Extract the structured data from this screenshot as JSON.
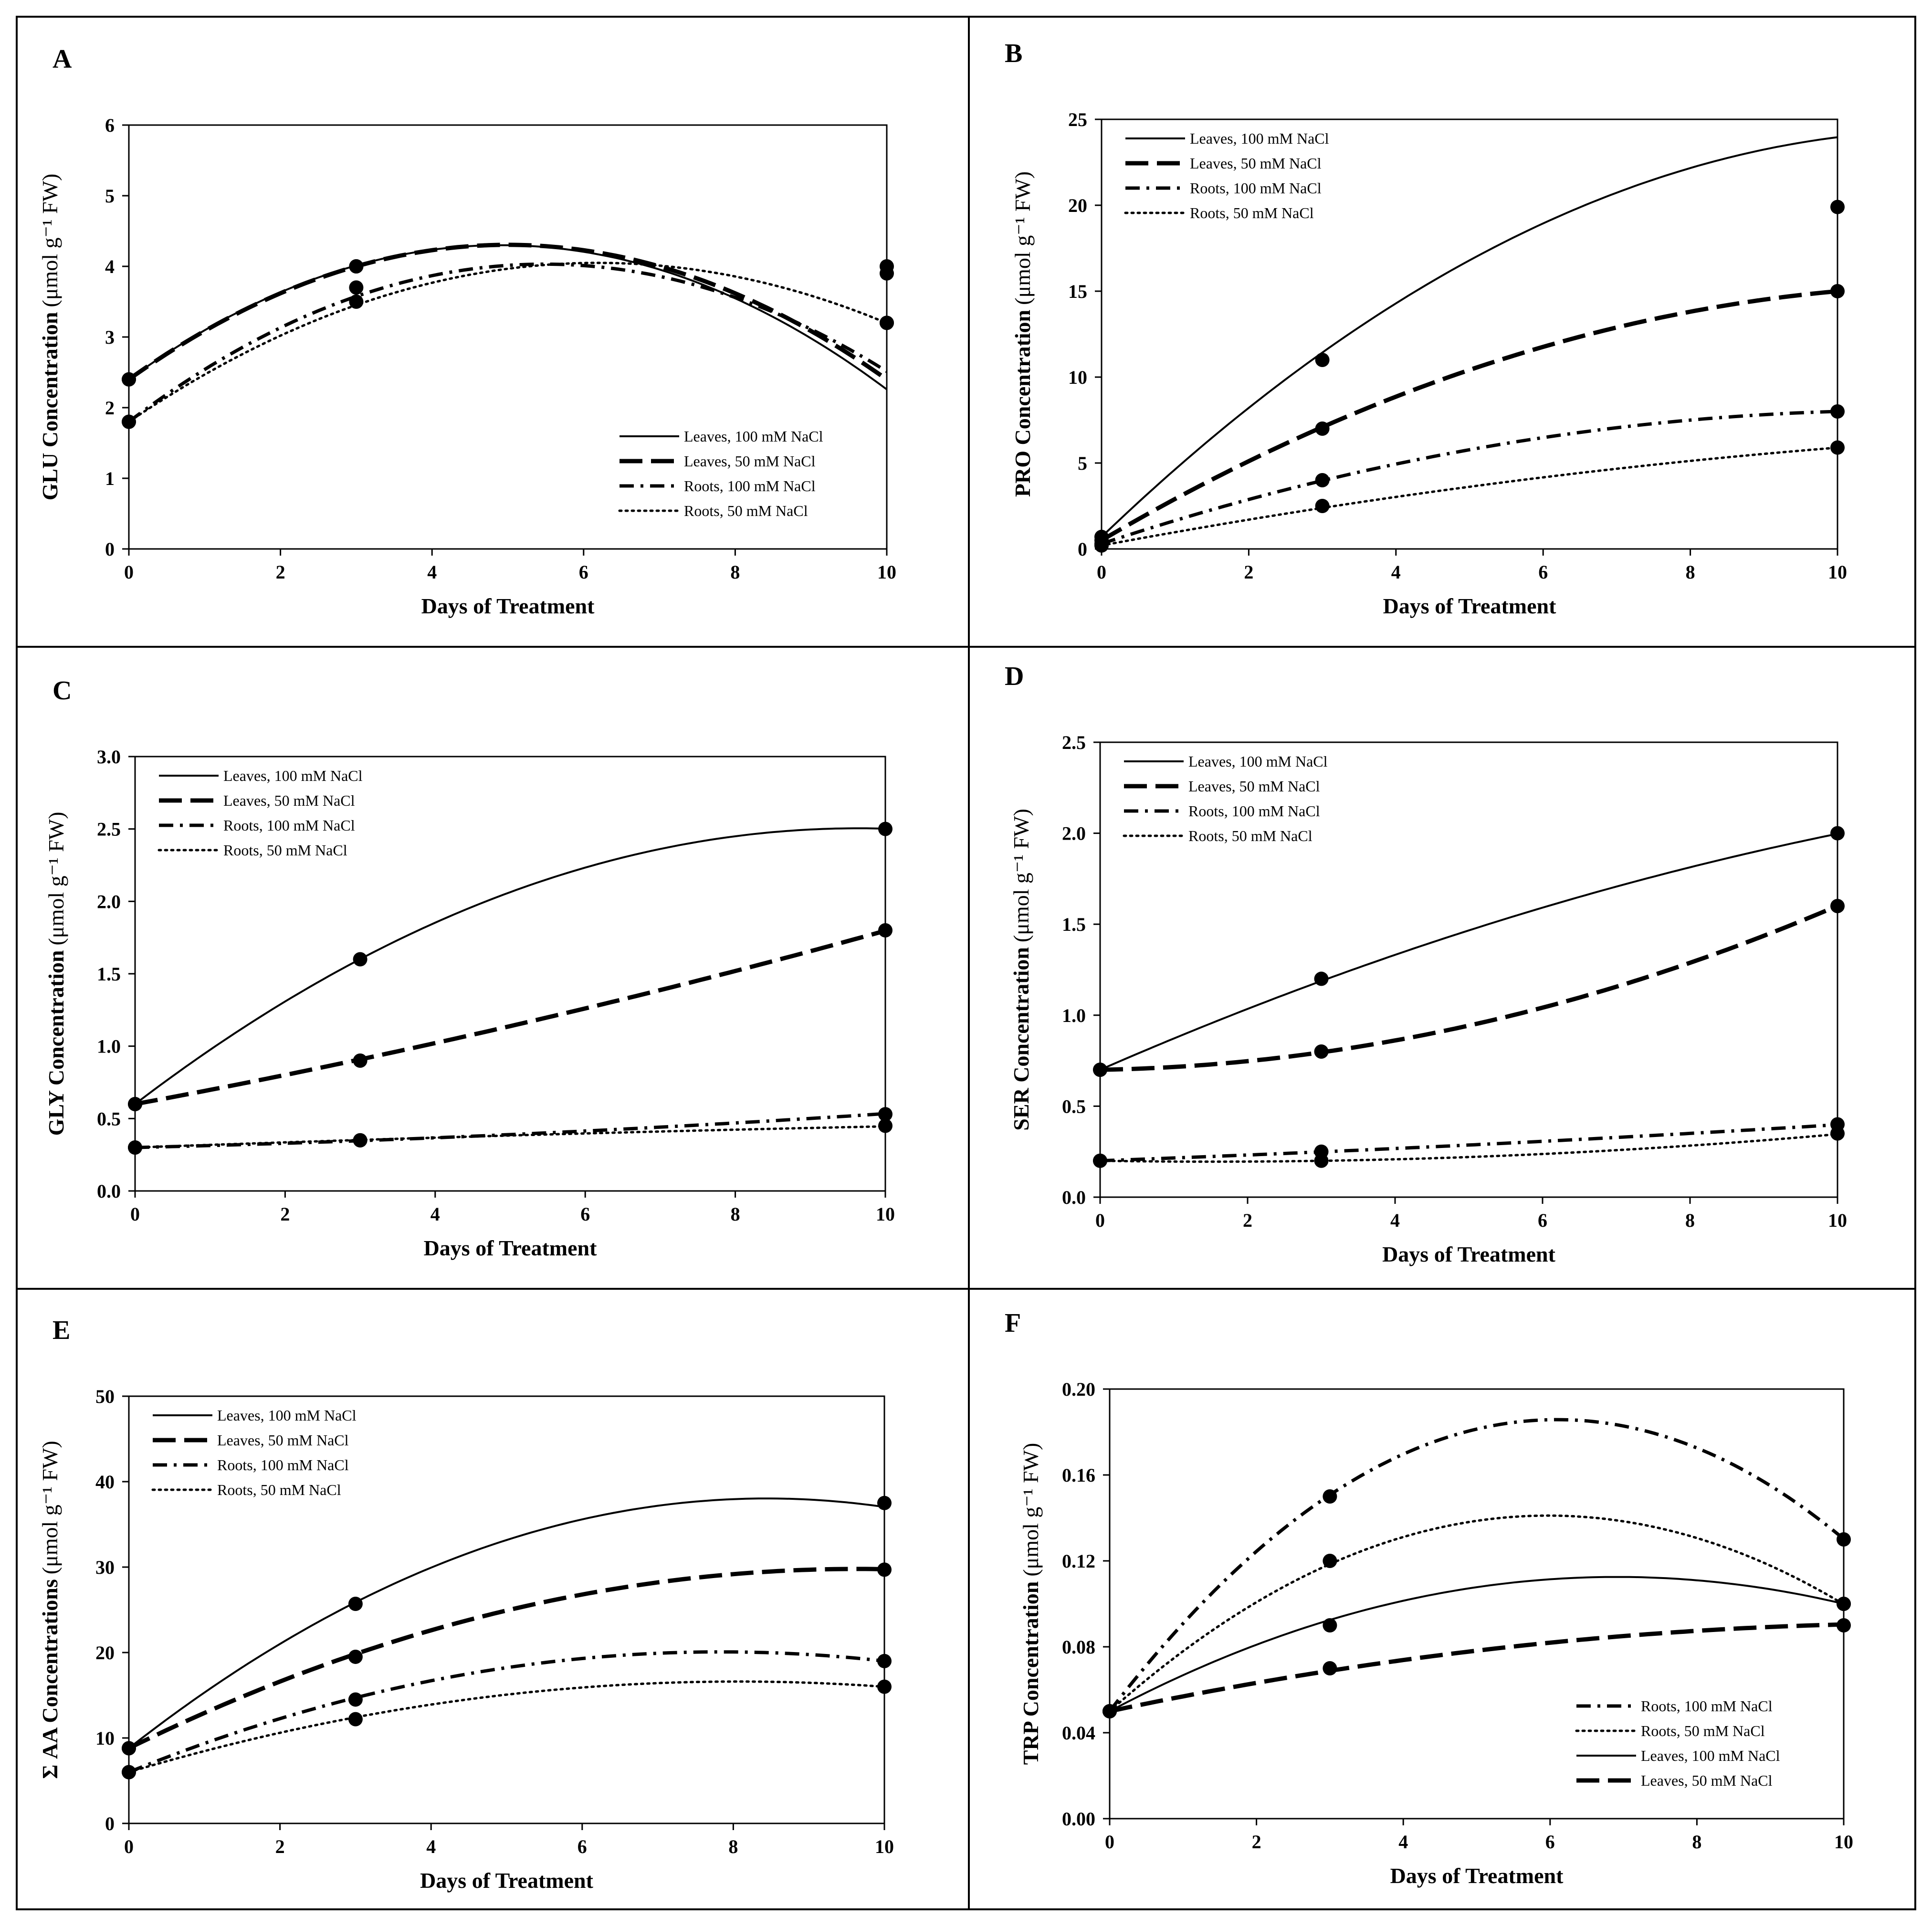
{
  "figure": {
    "style": {
      "line_color": "#000000",
      "background": "#ffffff",
      "line_styles": {
        "Leaves, 100 mM NaCl": "solid",
        "Leaves, 50 mM NaCl": "long-dash",
        "Roots, 100 mM NaCl": "dash-dot",
        "Roots, 50 mM NaCl": "dotted"
      }
    }
  },
  "chart_data": [
    {
      "panel": "A",
      "type": "line",
      "xlabel": "Days of Treatment",
      "ylabel_bold": "GLU Concentration",
      "ylabel_unit": "(μmol g⁻¹ FW)",
      "xlim": [
        0,
        10
      ],
      "xticks": [
        "0",
        "2",
        "4",
        "6",
        "8",
        "10"
      ],
      "ylim": [
        0,
        6
      ],
      "yticks": [
        "0",
        "1",
        "2",
        "3",
        "4",
        "5",
        "6"
      ],
      "grid": false,
      "legend_position": "bottom-right",
      "series": [
        {
          "name": "Leaves, 100 mM NaCl",
          "style": "solid",
          "points": [
            [
              0,
              2.4
            ],
            [
              3,
              4.0
            ],
            [
              10,
              3.9
            ]
          ],
          "fit": [
            2.4,
            0.7738,
            -0.0788
          ]
        },
        {
          "name": "Leaves, 50 mM NaCl",
          "style": "long-dash",
          "points": [
            [
              0,
              2.4
            ],
            [
              3,
              4.0
            ],
            [
              10,
              4.0
            ]
          ],
          "fit": [
            2.4,
            0.7619,
            -0.0762
          ]
        },
        {
          "name": "Roots, 100 mM NaCl",
          "style": "dash-dot",
          "points": [
            [
              0,
              1.8
            ],
            [
              3,
              3.7
            ],
            [
              10,
              3.2
            ]
          ],
          "fit": [
            1.8,
            0.8143,
            -0.0743
          ]
        },
        {
          "name": "Roots, 50 mM NaCl",
          "style": "dotted",
          "points": [
            [
              0,
              1.8
            ],
            [
              3,
              3.5
            ],
            [
              10,
              3.2
            ]
          ],
          "fit": [
            1.8,
            0.7267,
            -0.0587
          ]
        }
      ]
    },
    {
      "panel": "B",
      "type": "line",
      "xlabel": "Days of Treatment",
      "ylabel_bold": "PRO Concentration",
      "ylabel_unit": "(μmol g⁻¹ FW)",
      "xlim": [
        0,
        10
      ],
      "xticks": [
        "0",
        "2",
        "4",
        "6",
        "8",
        "10"
      ],
      "ylim": [
        0,
        25
      ],
      "yticks": [
        "0",
        "5",
        "10",
        "15",
        "20",
        "25"
      ],
      "grid": false,
      "legend_position": "top-left",
      "series": [
        {
          "name": "Leaves, 100 mM NaCl",
          "style": "solid",
          "points": [
            [
              0,
              0.7
            ],
            [
              3,
              11.0
            ],
            [
              10,
              19.9
            ]
          ],
          "fit": [
            0.7,
            4.1119,
            -0.1786
          ]
        },
        {
          "name": "Leaves, 50 mM NaCl",
          "style": "long-dash",
          "points": [
            [
              0,
              0.5
            ],
            [
              3,
              7.0
            ],
            [
              10,
              15.0
            ]
          ],
          "fit": [
            0.5,
            2.5167,
            -0.1067
          ]
        },
        {
          "name": "Roots, 100 mM NaCl",
          "style": "dash-dot",
          "points": [
            [
              0,
              0.3
            ],
            [
              3,
              4.0
            ],
            [
              10,
              8.0
            ]
          ],
          "fit": [
            0.3,
            1.419,
            -0.0649
          ]
        },
        {
          "name": "Roots, 50 mM NaCl",
          "style": "dotted",
          "points": [
            [
              0,
              0.2
            ],
            [
              3,
              2.5
            ],
            [
              10,
              5.9
            ]
          ],
          "fit": [
            0.2,
            0.7976,
            -0.0228
          ]
        }
      ]
    },
    {
      "panel": "C",
      "type": "line",
      "xlabel": "Days of Treatment",
      "ylabel_bold": "GLY Concentration",
      "ylabel_unit": "(μmol g⁻¹ FW)",
      "xlim": [
        0,
        10
      ],
      "xticks": [
        "0",
        "2",
        "4",
        "6",
        "8",
        "10"
      ],
      "ylim": [
        0,
        3
      ],
      "yticks": [
        "0.0",
        "0.5",
        "1.0",
        "1.5",
        "2.0",
        "2.5",
        "3.0"
      ],
      "grid": false,
      "legend_position": "top-left",
      "series": [
        {
          "name": "Leaves, 100 mM NaCl",
          "style": "solid",
          "points": [
            [
              0,
              0.6
            ],
            [
              3,
              1.6
            ],
            [
              10,
              2.5
            ]
          ],
          "fit": [
            0.6,
            0.3952,
            -0.0205
          ]
        },
        {
          "name": "Leaves, 50 mM NaCl",
          "style": "long-dash",
          "points": [
            [
              0,
              0.6
            ],
            [
              3,
              0.9
            ],
            [
              10,
              1.8
            ]
          ],
          "fit": [
            0.6,
            0.0957,
            0.0024
          ]
        },
        {
          "name": "Roots, 100 mM NaCl",
          "style": "dash-dot",
          "points": [
            [
              0,
              0.3
            ],
            [
              3,
              0.35
            ],
            [
              10,
              0.53
            ]
          ],
          "fit": [
            0.3,
            0.0124,
            0.0011
          ]
        },
        {
          "name": "Roots, 50 mM NaCl",
          "style": "dotted",
          "points": [
            [
              0,
              0.3
            ],
            [
              3,
              0.35
            ],
            [
              10,
              0.45
            ]
          ],
          "fit": [
            0.3,
            0.0186,
            -0.0004
          ]
        }
      ]
    },
    {
      "panel": "D",
      "type": "line",
      "xlabel": "Days of Treatment",
      "ylabel_bold": "SER  Concentration",
      "ylabel_unit": "(μmol g⁻¹ FW)",
      "xlim": [
        0,
        10
      ],
      "xticks": [
        "0",
        "2",
        "4",
        "6",
        "8",
        "10"
      ],
      "ylim": [
        0,
        2.5
      ],
      "yticks": [
        "0.0",
        "0.5",
        "1.0",
        "1.5",
        "2.0",
        "2.5"
      ],
      "grid": false,
      "legend_position": "top-left",
      "series": [
        {
          "name": "Leaves, 100 mM NaCl",
          "style": "solid",
          "points": [
            [
              0,
              0.7
            ],
            [
              3,
              1.2
            ],
            [
              10,
              2.0
            ]
          ],
          "fit": [
            0.7,
            0.1767,
            -0.0047
          ]
        },
        {
          "name": "Leaves, 50 mM NaCl",
          "style": "long-dash",
          "points": [
            [
              0,
              0.7
            ],
            [
              3,
              0.8
            ],
            [
              10,
              1.6
            ]
          ],
          "fit": [
            0.7,
            0.0071,
            0.0083
          ]
        },
        {
          "name": "Roots, 100 mM NaCl",
          "style": "dash-dot",
          "points": [
            [
              0,
              0.2
            ],
            [
              3,
              0.25
            ],
            [
              10,
              0.4
            ]
          ],
          "fit": [
            0.2,
            0.0148,
            0.0005
          ]
        },
        {
          "name": "Roots, 50 mM NaCl",
          "style": "dotted",
          "points": [
            [
              0,
              0.2
            ],
            [
              3,
              0.2
            ],
            [
              10,
              0.35
            ]
          ],
          "fit": [
            0.2,
            -0.0064,
            0.0021
          ]
        }
      ]
    },
    {
      "panel": "E",
      "type": "line",
      "xlabel": "Days of Treatment",
      "ylabel_bold": "Σ AA Concentrations",
      "ylabel_unit": "(μmol g⁻¹ FW)",
      "xlim": [
        0,
        10
      ],
      "xticks": [
        "0",
        "2",
        "4",
        "6",
        "8",
        "10"
      ],
      "ylim": [
        0,
        50
      ],
      "yticks": [
        "0",
        "10",
        "20",
        "30",
        "40",
        "50"
      ],
      "grid": false,
      "legend_position": "top-left",
      "series": [
        {
          "name": "Leaves, 100 mM NaCl",
          "style": "solid",
          "points": [
            [
              0,
              8.8
            ],
            [
              3,
              25.7
            ],
            [
              10,
              37.5
            ]
          ],
          "fit": [
            8.8,
            6.9238,
            -0.41
          ]
        },
        {
          "name": "Leaves, 50 mM NaCl",
          "style": "long-dash",
          "points": [
            [
              0,
              8.8
            ],
            [
              3,
              19.5
            ],
            [
              10,
              29.7
            ]
          ],
          "fit": [
            8.8,
            4.3524,
            -0.2257
          ]
        },
        {
          "name": "Roots, 100 mM NaCl",
          "style": "dash-dot",
          "points": [
            [
              0,
              6.0
            ],
            [
              3,
              14.5
            ],
            [
              10,
              19.0
            ]
          ],
          "fit": [
            6.0,
            3.5905,
            -0.229
          ]
        },
        {
          "name": "Roots, 50 mM NaCl",
          "style": "dotted",
          "points": [
            [
              0,
              6.0
            ],
            [
              3,
              12.2
            ],
            [
              10,
              16.0
            ]
          ],
          "fit": [
            6.0,
            2.6286,
            -0.1629
          ]
        }
      ]
    },
    {
      "panel": "F",
      "type": "line",
      "xlabel": "Days of Treatment",
      "ylabel_bold": "TRP Concentration",
      "ylabel_unit": "(μmol g⁻¹ FW)",
      "xlim": [
        0,
        10
      ],
      "xticks": [
        "0",
        "2",
        "4",
        "6",
        "8",
        "10"
      ],
      "ylim": [
        0,
        0.2
      ],
      "yticks": [
        "0.00",
        "0.04",
        "0.08",
        "0.12",
        "0.16",
        "0.20"
      ],
      "grid": false,
      "legend_position": "bottom-right",
      "series": [
        {
          "name": "Roots, 100 mM NaCl",
          "style": "dash-dot",
          "points": [
            [
              0,
              0.05
            ],
            [
              3,
              0.15
            ],
            [
              10,
              0.13
            ]
          ],
          "fit": [
            0.05,
            0.04452,
            -0.00365
          ]
        },
        {
          "name": "Roots, 50 mM NaCl",
          "style": "dotted",
          "points": [
            [
              0,
              0.05
            ],
            [
              3,
              0.12
            ],
            [
              10,
              0.1
            ]
          ],
          "fit": [
            0.05,
            0.03048,
            -0.00255
          ]
        },
        {
          "name": "Leaves, 100 mM NaCl",
          "style": "solid",
          "points": [
            [
              0,
              0.05
            ],
            [
              3,
              0.09
            ],
            [
              10,
              0.1
            ]
          ],
          "fit": [
            0.05,
            0.0181,
            -0.00131
          ]
        },
        {
          "name": "Leaves, 50 mM NaCl",
          "style": "long-dash",
          "points": [
            [
              0,
              0.05
            ],
            [
              3,
              0.07
            ],
            [
              10,
              0.09
            ]
          ],
          "fit": [
            0.05,
            0.00724,
            -0.00032
          ]
        }
      ]
    }
  ]
}
